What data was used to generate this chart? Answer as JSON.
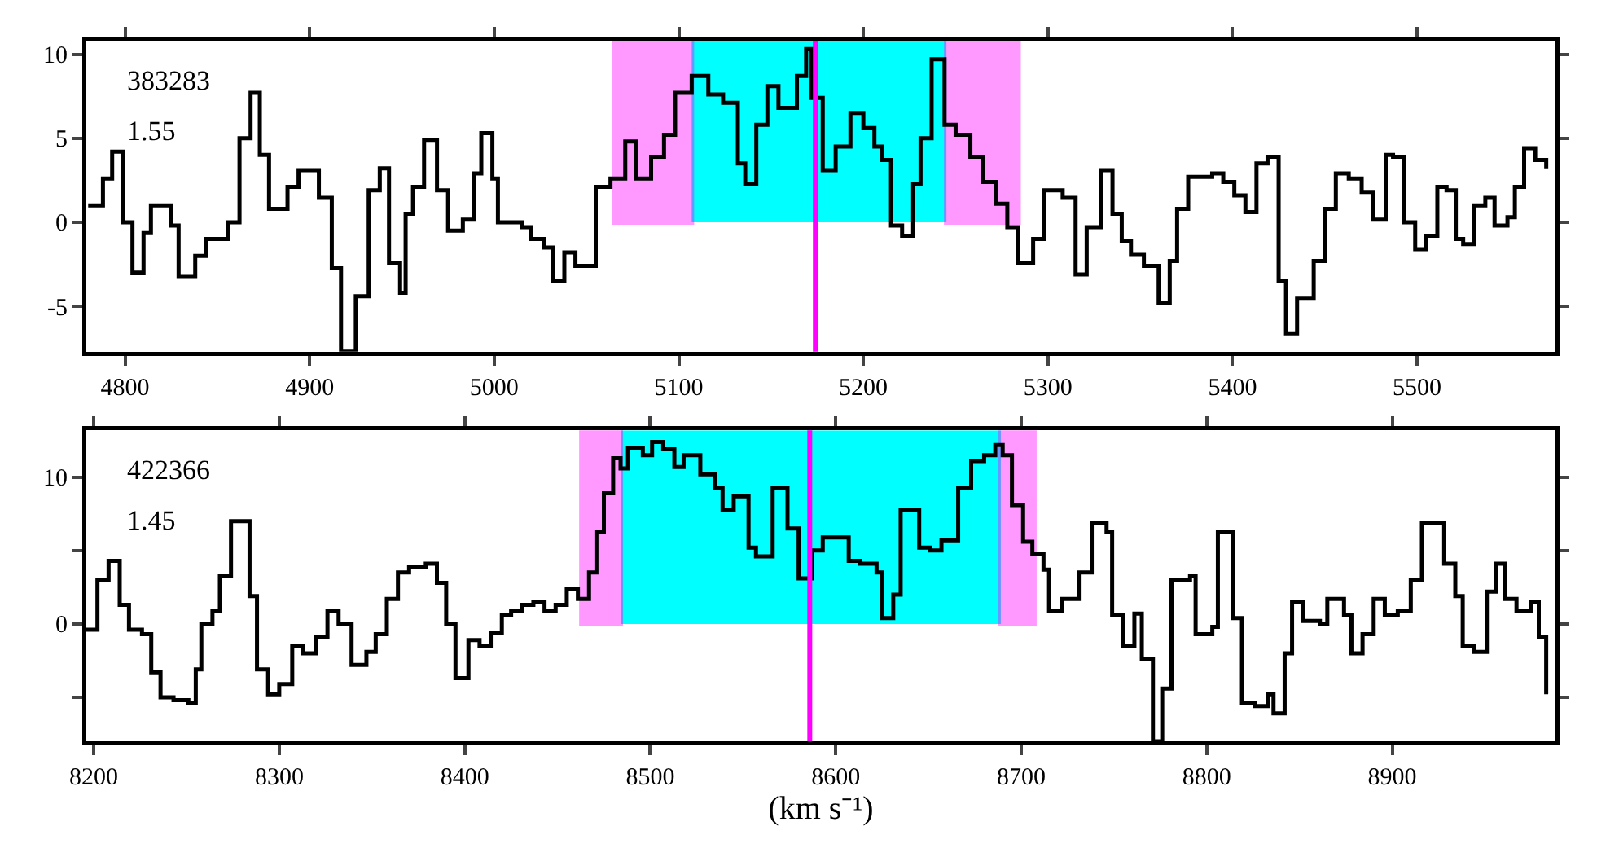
{
  "chart_data": [
    {
      "type": "step",
      "color": "#000000",
      "x": [
        4780,
        4788,
        4793,
        4799,
        4804,
        4810,
        4814,
        4825,
        4829,
        4838,
        4844,
        4856,
        4862,
        4868,
        4873,
        4878,
        4888,
        4894,
        4905,
        4912,
        4917,
        4925,
        4932,
        4938,
        4943,
        4949,
        4952,
        4956,
        4962,
        4969,
        4975,
        4983,
        4989,
        4993,
        4999,
        5002,
        5015,
        5020,
        5027,
        5032,
        5038,
        5044,
        5055,
        5063,
        5071,
        5077,
        5085,
        5092,
        5098,
        5107,
        5116,
        5124,
        5132,
        5136,
        5142,
        5148,
        5154,
        5164,
        5169,
        5172,
        5178,
        5185,
        5193,
        5200,
        5206,
        5210,
        5215,
        5221,
        5227,
        5231,
        5237,
        5244,
        5250,
        5258,
        5265,
        5272,
        5278,
        5284,
        5292,
        5298,
        5308,
        5315,
        5321,
        5329,
        5335,
        5340,
        5345,
        5352,
        5360,
        5366,
        5370,
        5376,
        5389,
        5395,
        5401,
        5407,
        5413,
        5419,
        5425,
        5429,
        5435,
        5444,
        5450,
        5456,
        5463,
        5470,
        5476,
        5483,
        5487,
        5493,
        5499,
        5505,
        5511,
        5516,
        5521,
        5525,
        5531,
        5537,
        5542,
        5549,
        5553,
        5558,
        5564,
        5570
      ],
      "values": [
        1.0,
        2.6,
        4.2,
        0,
        -3,
        -0.6,
        1,
        -0.2,
        -3.2,
        -2,
        -1,
        0,
        5,
        7.7,
        4,
        0.8,
        2.1,
        3.1,
        1.5,
        -2.7,
        -7.7,
        -4.4,
        1.9,
        3.2,
        -2.4,
        -4.2,
        0.5,
        2.1,
        4.9,
        1.9,
        -0.5,
        0.2,
        2.9,
        5.3,
        2.6,
        0,
        -0.3,
        -1,
        -1.5,
        -3.5,
        -1.8,
        -2.6,
        2.1,
        2.6,
        4.8,
        2.6,
        3.9,
        5.2,
        7.7,
        8.7,
        7.6,
        7.1,
        3.5,
        2.3,
        5.8,
        8.1,
        6.8,
        8.7,
        10.3,
        7.4,
        3.1,
        4.5,
        6.5,
        5.6,
        4.5,
        3.7,
        -0.2,
        -0.8,
        2.3,
        5,
        9.7,
        5.8,
        5.2,
        3.9,
        2.4,
        1.1,
        -0.3,
        -2.4,
        -1,
        1.9,
        1.5,
        -3.1,
        -0.3,
        3.1,
        0.5,
        -1.1,
        -1.9,
        -2.6,
        -4.8,
        -2.3,
        0.8,
        2.7,
        2.9,
        2.4,
        1.6,
        0.6,
        3.5,
        3.9,
        -3.5,
        -6.6,
        -4.5,
        -2.3,
        0.8,
        2.9,
        2.6,
        1.8,
        0.2,
        4,
        3.9,
        0,
        -1.6,
        -0.8,
        2.1,
        1.9,
        -1,
        -1.3,
        1,
        1.5,
        -0.2,
        0.3,
        2.1,
        4.4,
        3.7,
        3.2
      ],
      "xlim": [
        4779,
        5575
      ],
      "xticks": [
        4800,
        4900,
        5000,
        5100,
        5200,
        5300,
        5400,
        5500
      ],
      "ylim": [
        -7.7,
        10.8
      ],
      "yticks": [
        -5,
        0,
        5,
        10
      ],
      "ref_lines": [
        {
          "axis": "x",
          "value": 5174,
          "color": "#ff00ff"
        }
      ],
      "bands": [
        {
          "axis": "x",
          "from": 5107,
          "to": 5245,
          "color": "#00ffff"
        },
        {
          "axis": "x",
          "from": 5065,
          "to": 5107,
          "color": "#ff00ff"
        },
        {
          "axis": "x",
          "from": 5245,
          "to": 5284,
          "color": "#ff00ff"
        }
      ],
      "annotations": [
        "383283",
        "1.55"
      ]
    },
    {
      "type": "step",
      "color": "#000000",
      "x": [
        8196,
        8202,
        8208,
        8214,
        8219,
        8226,
        8231,
        8236,
        8243,
        8251,
        8255,
        8258,
        8264,
        8268,
        8274,
        8284,
        8288,
        8294,
        8300,
        8307,
        8313,
        8320,
        8326,
        8332,
        8339,
        8347,
        8352,
        8358,
        8364,
        8370,
        8379,
        8385,
        8390,
        8395,
        8402,
        8408,
        8414,
        8420,
        8425,
        8431,
        8437,
        8443,
        8449,
        8455,
        8461,
        8467,
        8471,
        8475,
        8480,
        8484,
        8488,
        8496,
        8501,
        8507,
        8513,
        8518,
        8527,
        8535,
        8539,
        8545,
        8553,
        8557,
        8566,
        8574,
        8580,
        8587,
        8593,
        8607,
        8613,
        8622,
        8625,
        8631,
        8635,
        8645,
        8651,
        8657,
        8666,
        8673,
        8680,
        8686,
        8690,
        8695,
        8701,
        8706,
        8712,
        8715,
        8722,
        8731,
        8738,
        8746,
        8749,
        8755,
        8761,
        8765,
        8771,
        8776,
        8781,
        8791,
        8794,
        8803,
        8806,
        8814,
        8819,
        8826,
        8833,
        8836,
        8842,
        8846,
        8852,
        8861,
        8865,
        8874,
        8878,
        8884,
        8890,
        8896,
        8903,
        8910,
        8916,
        8928,
        8934,
        8938,
        8944,
        8951,
        8956,
        8961,
        8967,
        8975,
        8979,
        8983
      ],
      "values": [
        -0.4,
        3,
        4.3,
        1.3,
        -0.4,
        -0.7,
        -3.3,
        -5,
        -5.2,
        -5.4,
        -3.1,
        0,
        0.9,
        3.3,
        7,
        1.9,
        -3.1,
        -4.8,
        -4.1,
        -1.5,
        -2,
        -0.9,
        0.9,
        0,
        -2.8,
        -1.9,
        -0.7,
        1.7,
        3.5,
        3.9,
        4.1,
        2.8,
        0,
        -3.7,
        -1.1,
        -1.5,
        -0.6,
        0.6,
        0.9,
        1.3,
        1.5,
        0.9,
        1.3,
        2.4,
        1.7,
        3.5,
        6.3,
        8.9,
        11.3,
        10.6,
        12,
        11.5,
        12.4,
        11.9,
        10.7,
        11.5,
        10.2,
        9.3,
        7.8,
        8.7,
        5.2,
        4.6,
        9.3,
        6.5,
        3.1,
        5,
        5.9,
        4.3,
        4.1,
        3.5,
        0.4,
        2,
        7.8,
        5.2,
        5,
        5.7,
        9.3,
        11.1,
        11.5,
        12.2,
        11.5,
        8.1,
        5.6,
        4.8,
        3.7,
        0.9,
        1.7,
        3.5,
        6.9,
        6.3,
        0.6,
        -1.5,
        0.7,
        -2.4,
        -8,
        -4.4,
        3,
        3.3,
        -0.7,
        -0.2,
        6.3,
        0.4,
        -5.4,
        -5.6,
        -4.8,
        -6.1,
        -2,
        1.5,
        0.2,
        0,
        1.7,
        0.6,
        -2,
        -0.7,
        1.7,
        0.6,
        0.9,
        3,
        6.9,
        4.1,
        1.9,
        -1.5,
        -1.9,
        2.2,
        4.1,
        1.7,
        0.9,
        1.5,
        -0.9,
        -4.8
      ],
      "xlim": [
        8196,
        8988
      ],
      "xticks": [
        8200,
        8300,
        8400,
        8500,
        8600,
        8700,
        8800,
        8900
      ],
      "ylim": [
        -8,
        13.2
      ],
      "yticks": [
        {
          "value": -5,
          "label": null
        },
        0,
        {
          "value": 5,
          "label": null
        },
        10
      ],
      "ref_lines": [
        {
          "axis": "x",
          "value": 8586,
          "color": "#ff00ff"
        }
      ],
      "bands": [
        {
          "axis": "x",
          "from": 8484,
          "to": 8689,
          "color": "#00ffff"
        },
        {
          "axis": "x",
          "from": 8463,
          "to": 8484,
          "color": "#ff00ff"
        },
        {
          "axis": "x",
          "from": 8689,
          "to": 8707,
          "color": "#ff00ff"
        }
      ],
      "annotations": [
        "422366",
        "1.45"
      ],
      "xlabel": "(km s⁻¹)"
    }
  ]
}
